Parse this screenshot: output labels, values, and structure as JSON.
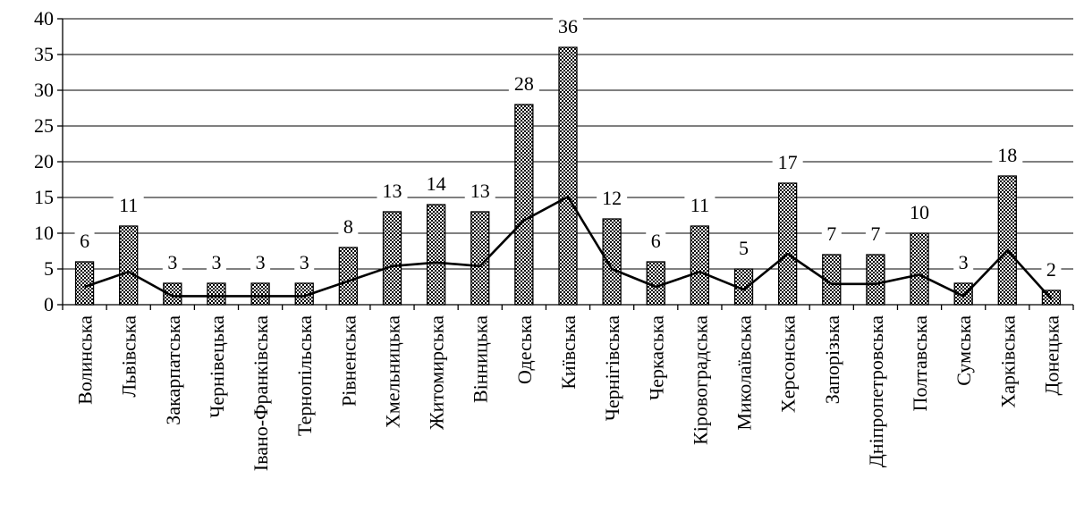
{
  "chart_data": {
    "type": "bar",
    "title": "",
    "xlabel": "",
    "ylabel": "",
    "ylim": [
      0,
      40
    ],
    "yticks": [
      0,
      5,
      10,
      15,
      20,
      25,
      30,
      35,
      40
    ],
    "grid": true,
    "legend": "none",
    "categories": [
      "Волинська",
      "Львівська",
      "Закарпатська",
      "Чернівецька",
      "Івано-Франківська",
      "Тернопільська",
      "Рівненська",
      "Хмельницька",
      "Житомирська",
      "Вінницька",
      "Одеська",
      "Київська",
      "Чернігівська",
      "Черкаська",
      "Кіровоградська",
      "Миколаївська",
      "Херсонська",
      "Запорізька",
      "Дніпропетровська",
      "Полтавська",
      "Сумська",
      "Харківська",
      "Донецька"
    ],
    "series": [
      {
        "type": "bar",
        "values": [
          6,
          11,
          3,
          3,
          3,
          3,
          8,
          13,
          14,
          13,
          28,
          36,
          12,
          6,
          11,
          5,
          17,
          7,
          7,
          10,
          3,
          18,
          2
        ],
        "data_labels": [
          "6",
          "11",
          "3",
          "3",
          "3",
          "3",
          "8",
          "13",
          "14",
          "13",
          "28",
          "36",
          "12",
          "6",
          "11",
          "5",
          "17",
          "7",
          "7",
          "10",
          "3",
          "18",
          "2"
        ]
      },
      {
        "type": "line",
        "values": [
          2.5,
          4.6,
          1.2,
          1.2,
          1.2,
          1.2,
          3.3,
          5.4,
          5.9,
          5.4,
          11.8,
          15.1,
          5.0,
          2.5,
          4.6,
          2.1,
          7.1,
          2.9,
          2.9,
          4.2,
          1.2,
          7.6,
          0.8
        ]
      }
    ]
  }
}
